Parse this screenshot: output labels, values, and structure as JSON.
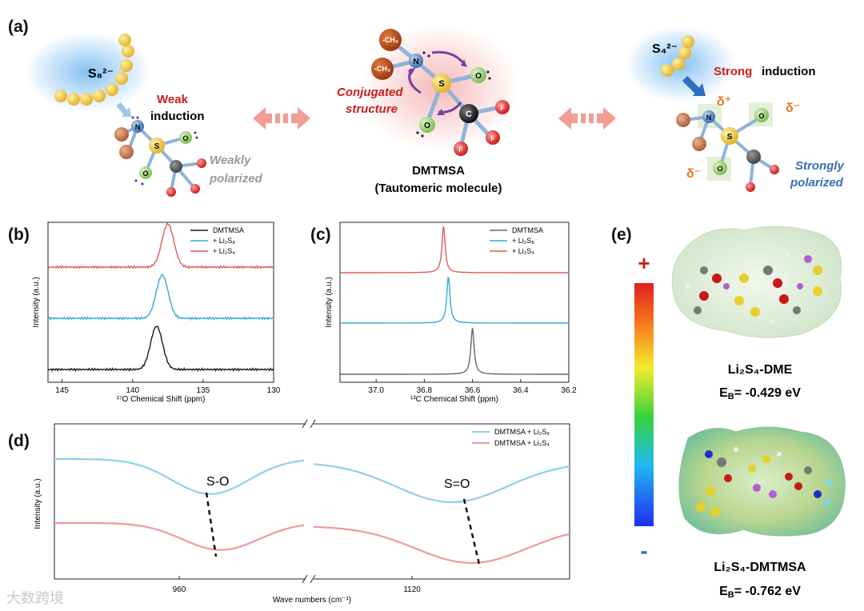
{
  "panels": {
    "a": "(a)",
    "b": "(b)",
    "c": "(c)",
    "d": "(d)",
    "e": "(e)"
  },
  "panel_a": {
    "left_ion": "S₈²⁻",
    "weak_word": "Weak",
    "induction_word": "induction",
    "weakly_polarized_1": "Weakly",
    "weakly_polarized_2": "polarized",
    "center_conj_1": "Conjugated",
    "center_conj_2": "structure",
    "center_name": "DMTMSA",
    "center_sub": "(Tautomeric molecule)",
    "ch3_label": "-CH₃",
    "atom_N": "N",
    "atom_S": "S",
    "atom_O": "O",
    "atom_C": "C",
    "atom_F": "F",
    "right_ion": "S₄²⁻",
    "strong_word": "Strong",
    "strong_induction_word": "induction",
    "strongly_polarized_1": "Strongly",
    "strongly_polarized_2": "polarized",
    "delta_plus": "δ⁺",
    "delta_minus": "δ⁻"
  },
  "colors": {
    "black_series": "#1a1a1a",
    "blue_series": "#35a9dc",
    "red_series": "#e05a5a",
    "gray_series": "#666666",
    "d_blue": "#8fd0ea",
    "d_red": "#ee9a9a",
    "accent_red": "#cc1d1d",
    "accent_blue": "#3b6db3",
    "accent_orange": "#e8761f"
  },
  "chart_data": [
    {
      "panel": "b",
      "type": "line",
      "xlabel": "¹⁷O Chemical Shift (ppm)",
      "ylabel": "Intensity (a.u.)",
      "xlim": [
        146,
        130
      ],
      "xticks": [
        145,
        140,
        135,
        130
      ],
      "legend": [
        "DMTMSA",
        "+ Li₂S₈",
        "+ Li₂S₄"
      ],
      "series": [
        {
          "name": "DMTMSA",
          "peak_ppm": 138.3,
          "width_ppm": 0.6
        },
        {
          "name": "+ Li₂S₈",
          "peak_ppm": 137.9,
          "width_ppm": 0.6
        },
        {
          "name": "+ Li₂S₄",
          "peak_ppm": 137.5,
          "width_ppm": 0.6
        }
      ]
    },
    {
      "panel": "c",
      "type": "line",
      "xlabel": "¹³C Chemical Shift (ppm)",
      "ylabel": "Intensity (a.u.)",
      "xlim": [
        37.15,
        36.2
      ],
      "xticks": [
        37.0,
        36.8,
        36.6,
        36.4,
        36.2
      ],
      "legend": [
        "DMTMSA",
        "+ Li₂S₈",
        "+ Li₂S₄"
      ],
      "series": [
        {
          "name": "DMTMSA",
          "peak_ppm": 36.6,
          "width_ppm": 0.008
        },
        {
          "name": "+ Li₂S₈",
          "peak_ppm": 36.7,
          "width_ppm": 0.008
        },
        {
          "name": "+ Li₂S₄",
          "peak_ppm": 36.72,
          "width_ppm": 0.008
        }
      ]
    },
    {
      "panel": "d",
      "type": "line",
      "xlabel": "Wave numbers (cm⁻¹)",
      "ylabel": "Intensity (a.u.)",
      "xticks": [
        960,
        1120
      ],
      "legend": [
        "DMTMSA + Li₂S₈",
        "DMTMSA + Li₂S₄"
      ],
      "annotations": [
        "S-O",
        "S=O"
      ],
      "series": [
        {
          "name": "DMTMSA + Li₂S₈",
          "dip_so": 975,
          "dip_s_eq_o": 1140
        },
        {
          "name": "DMTMSA + Li₂S₄",
          "dip_so": 980,
          "dip_s_eq_o": 1150
        }
      ]
    }
  ],
  "panel_e": {
    "plus": "+",
    "minus": "-",
    "mol1": "Li₂S₄-DME",
    "eb1": "E",
    "eb1_sub": "B",
    "eb1_val": "= -0.429 eV",
    "mol2": "Li₂S₄-DMTMSA",
    "eb2": "E",
    "eb2_sub": "B",
    "eb2_val": "= -0.762 eV"
  },
  "watermark": "大数跨境"
}
